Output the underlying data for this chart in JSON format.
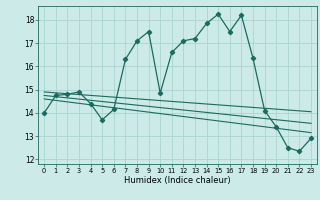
{
  "xlabel": "Humidex (Indice chaleur)",
  "background_color": "#cceae7",
  "grid_color": "#aad4d0",
  "line_color": "#1a6b60",
  "xlim": [
    -0.5,
    23.5
  ],
  "ylim": [
    11.8,
    18.6
  ],
  "xticks": [
    0,
    1,
    2,
    3,
    4,
    5,
    6,
    7,
    8,
    9,
    10,
    11,
    12,
    13,
    14,
    15,
    16,
    17,
    18,
    19,
    20,
    21,
    22,
    23
  ],
  "yticks": [
    12,
    13,
    14,
    15,
    16,
    17,
    18
  ],
  "main_x": [
    0,
    1,
    2,
    3,
    4,
    5,
    6,
    7,
    8,
    9,
    10,
    11,
    12,
    13,
    14,
    15,
    16,
    17,
    18,
    19,
    20,
    21,
    22,
    23
  ],
  "main_y": [
    14.0,
    14.75,
    14.8,
    14.9,
    14.4,
    13.7,
    14.15,
    16.3,
    17.1,
    17.5,
    14.85,
    16.6,
    17.1,
    17.2,
    17.85,
    18.25,
    17.5,
    18.2,
    16.35,
    14.1,
    13.4,
    12.5,
    12.35,
    12.9
  ],
  "trend_lines": [
    {
      "x0": 0,
      "y0": 14.9,
      "x1": 23,
      "y1": 14.05
    },
    {
      "x0": 0,
      "y0": 14.75,
      "x1": 23,
      "y1": 13.55
    },
    {
      "x0": 0,
      "y0": 14.6,
      "x1": 23,
      "y1": 13.15
    }
  ]
}
